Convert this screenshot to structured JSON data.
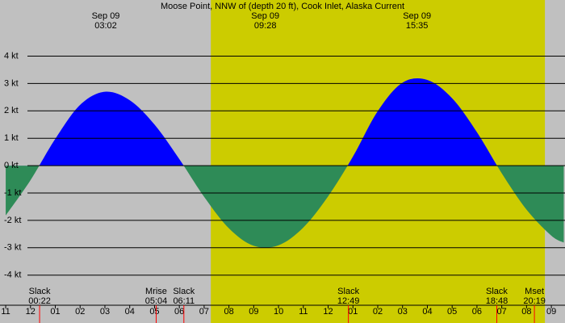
{
  "chart_data": {
    "type": "tide-current",
    "title": "Moose Point, NNW of (depth 20 ft), Cook Inlet, Alaska Current",
    "x": [
      -1,
      0,
      1,
      2,
      3,
      4,
      5,
      6,
      7,
      8,
      9,
      10,
      11,
      12,
      13,
      14,
      15,
      16,
      17,
      18,
      19,
      20,
      21,
      21.5
    ],
    "values": [
      -1.82,
      -0.53,
      0.98,
      2.22,
      2.7,
      2.39,
      1.5,
      0.24,
      -1.14,
      -2.29,
      -2.93,
      -2.91,
      -2.26,
      -1.12,
      0.33,
      1.99,
      3.03,
      3.13,
      2.46,
      1.22,
      -0.28,
      -1.61,
      -2.56,
      -2.81
    ],
    "flood_color": "#0000ff",
    "ebb_color": "#2e8b57",
    "night_color": "#c0c0c0",
    "day_color": "#cccc00",
    "daylight": [
      7.27,
      20.74
    ],
    "xlim": [
      -1.23,
      21.55
    ],
    "ylim": [
      -5.1,
      6.05
    ],
    "yticks": [
      {
        "value": 4,
        "label": "4 kt"
      },
      {
        "value": 3,
        "label": "3 kt"
      },
      {
        "value": 2,
        "label": "2 kt"
      },
      {
        "value": 1,
        "label": "1 kt"
      },
      {
        "value": 0,
        "label": "0 kt"
      },
      {
        "value": -1,
        "label": "-1 kt"
      },
      {
        "value": -2,
        "label": "-2 kt"
      },
      {
        "value": -3,
        "label": "-3 kt"
      },
      {
        "value": -4,
        "label": "-4 kt"
      }
    ],
    "xticks": [
      {
        "value": -1,
        "label": "11"
      },
      {
        "value": 0,
        "label": "12"
      },
      {
        "value": 1,
        "label": "01"
      },
      {
        "value": 2,
        "label": "02"
      },
      {
        "value": 3,
        "label": "03"
      },
      {
        "value": 4,
        "label": "04"
      },
      {
        "value": 5,
        "label": "05"
      },
      {
        "value": 6,
        "label": "06"
      },
      {
        "value": 7,
        "label": "07"
      },
      {
        "value": 8,
        "label": "08"
      },
      {
        "value": 9,
        "label": "09"
      },
      {
        "value": 10,
        "label": "10"
      },
      {
        "value": 11,
        "label": "11"
      },
      {
        "value": 12,
        "label": "12"
      },
      {
        "value": 13,
        "label": "01"
      },
      {
        "value": 14,
        "label": "02"
      },
      {
        "value": 15,
        "label": "03"
      },
      {
        "value": 16,
        "label": "04"
      },
      {
        "value": 17,
        "label": "05"
      },
      {
        "value": 18,
        "label": "06"
      },
      {
        "value": 19,
        "label": "07"
      },
      {
        "value": 20,
        "label": "08"
      },
      {
        "value": 21,
        "label": "09"
      }
    ],
    "peaks": [
      {
        "date": "Sep 09",
        "time": "03:02"
      },
      {
        "date": "Sep 09",
        "time": "09:28"
      },
      {
        "date": "Sep 09",
        "time": "15:35"
      }
    ],
    "events": [
      {
        "label": "Slack",
        "time": "00:22"
      },
      {
        "label": "Mrise",
        "time": "05:04"
      },
      {
        "label": "Slack",
        "time": "06:11"
      },
      {
        "label": "Slack",
        "time": "12:49"
      },
      {
        "label": "Slack",
        "time": "18:48"
      },
      {
        "label": "Mset",
        "time": "20:19"
      }
    ]
  }
}
